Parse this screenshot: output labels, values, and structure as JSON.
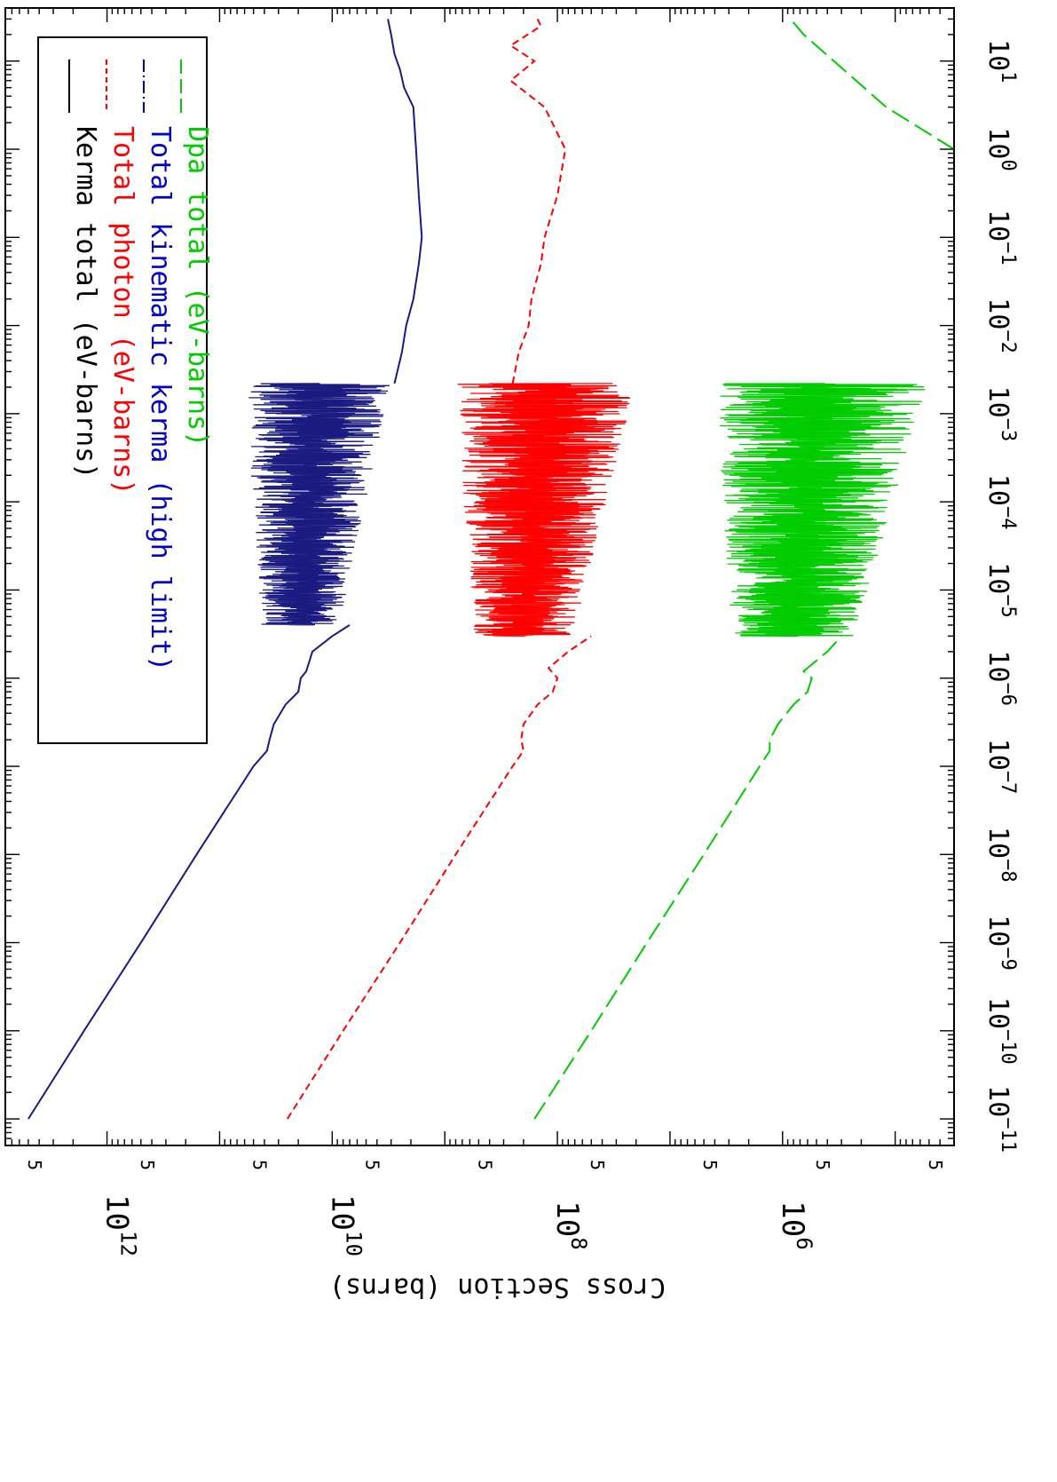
{
  "chart_data": {
    "type": "line",
    "rotation": "rotated 90 degrees clockwise (energy axis runs top-to-bottom along the right edge)",
    "ylabel": "Cross Section (barns)",
    "xlabel": "",
    "x_scale": "log",
    "y_scale": "log",
    "xlim": [
      5e-12,
      40
    ],
    "ylim": [
      30000.0,
      8000000000000.0
    ],
    "x_ticks": [
      {
        "exp": "-11",
        "value": 1e-11
      },
      {
        "exp": "-10",
        "value": 1e-10
      },
      {
        "exp": "-9",
        "value": 1e-09
      },
      {
        "exp": "-8",
        "value": 1e-08
      },
      {
        "exp": "-7",
        "value": 1e-07
      },
      {
        "exp": "-6",
        "value": 1e-06
      },
      {
        "exp": "-5",
        "value": 1e-05
      },
      {
        "exp": "-4",
        "value": 0.0001
      },
      {
        "exp": "-3",
        "value": 0.001
      },
      {
        "exp": "-2",
        "value": 0.01
      },
      {
        "exp": "-1",
        "value": 0.1
      },
      {
        "exp": "0",
        "value": 1
      },
      {
        "exp": "1",
        "value": 10
      }
    ],
    "x_tick_base": "10",
    "y_major_ticks": [
      {
        "exp": "12",
        "value": 1000000000000.0
      },
      {
        "exp": "10",
        "value": 10000000000.0
      },
      {
        "exp": "8",
        "value": 100000000.0
      },
      {
        "exp": "6",
        "value": 1000000.0
      }
    ],
    "y_tick_base": "10",
    "y_minor_five_labels": [
      5000000000000.0,
      500000000000.0,
      50000000000.0,
      5000000000.0,
      500000000.0,
      50000000.0,
      5000000.0,
      500000.0,
      50000.0
    ],
    "y_minor_five_text": "5",
    "legend": {
      "placement": "top-left (rotated frame)",
      "entries": [
        {
          "label": "Kerma total  (eV-barns)",
          "color": "#000000",
          "dash": "solid"
        },
        {
          "label": "Total photon (eV-barns)",
          "color": "#ff0000",
          "dash": "short-dash"
        },
        {
          "label": "Total kinematic kerma (high limit)",
          "color": "#0000cc",
          "dash": "dash-dot"
        },
        {
          "label": "Dpa total (eV-barns)",
          "color": "#00cc00",
          "dash": "long-dash"
        }
      ]
    },
    "series": [
      {
        "name": "Kerma total  (eV-barns)",
        "color": "#1a1a80",
        "smooth": [
          [
            1e-11,
            5000000000000.0
          ],
          [
            1e-10,
            1600000000000.0
          ],
          [
            1e-09,
            500000000000.0
          ],
          [
            1e-08,
            160000000000.0
          ],
          [
            1e-07,
            50000000000.0
          ],
          [
            1.5e-07,
            38000000000.0
          ],
          [
            2e-07,
            36000000000.0
          ],
          [
            3e-07,
            33000000000.0
          ],
          [
            5e-07,
            26000000000.0
          ],
          [
            7e-07,
            20000000000.0
          ],
          [
            1e-06,
            19000000000.0
          ],
          [
            1.2e-06,
            17000000000.0
          ],
          [
            2e-06,
            15000000000.0
          ],
          [
            3e-06,
            10000000000.0
          ],
          [
            4e-06,
            7000000000.0
          ]
        ],
        "resonance_band": {
          "x_range": [
            4e-06,
            0.0022
          ],
          "low": 3000000000.0,
          "high": 60000000000.0
        },
        "tail": [
          [
            0.0022,
            2800000000.0
          ],
          [
            0.005,
            2400000000.0
          ],
          [
            0.01,
            2200000000.0
          ],
          [
            0.02,
            1900000000.0
          ],
          [
            0.05,
            1700000000.0
          ],
          [
            0.1,
            1600000000.0
          ],
          [
            0.3,
            1700000000.0
          ],
          [
            1,
            1800000000.0
          ],
          [
            3,
            1900000000.0
          ],
          [
            5,
            2300000000.0
          ],
          [
            8,
            2500000000.0
          ],
          [
            12,
            2800000000.0
          ],
          [
            20,
            3000000000.0
          ],
          [
            30,
            3200000000.0
          ]
        ]
      },
      {
        "name": "Total photon (eV-barns)",
        "color": "#ff0000",
        "smooth": [
          [
            1e-11,
            25000000000.0
          ],
          [
            1e-10,
            8000000000.0
          ],
          [
            1e-09,
            2500000000.0
          ],
          [
            1e-08,
            800000000.0
          ],
          [
            1e-07,
            250000000.0
          ],
          [
            1.5e-07,
            200000000.0
          ],
          [
            2e-07,
            210000000.0
          ],
          [
            3e-07,
            200000000.0
          ],
          [
            5e-07,
            150000000.0
          ],
          [
            7e-07,
            110000000.0
          ],
          [
            1e-06,
            100000000.0
          ],
          [
            1.3e-06,
            120000000.0
          ],
          [
            2e-06,
            80000000.0
          ],
          [
            3e-06,
            50000000.0
          ]
        ],
        "resonance_band": {
          "x_range": [
            3e-06,
            0.0022
          ],
          "low": 20000000.0,
          "high": 800000000.0
        },
        "tail": [
          [
            0.0022,
            250000000.0
          ],
          [
            0.005,
            220000000.0
          ],
          [
            0.01,
            180000000.0
          ],
          [
            0.02,
            170000000.0
          ],
          [
            0.05,
            140000000.0
          ],
          [
            0.1,
            130000000.0
          ],
          [
            0.3,
            100000000.0
          ],
          [
            1,
            85000000.0
          ],
          [
            3,
            130000000.0
          ],
          [
            6,
            260000000.0
          ],
          [
            10,
            160000000.0
          ],
          [
            15,
            260000000.0
          ],
          [
            25,
            140000000.0
          ],
          [
            30,
            150000000.0
          ]
        ]
      },
      {
        "name": "Dpa total (eV-barns)",
        "color": "#00cc00",
        "smooth": [
          [
            1e-11,
            160000000.0
          ],
          [
            1e-10,
            50000000.0
          ],
          [
            1e-09,
            16000000.0
          ],
          [
            1e-08,
            5000000.0
          ],
          [
            1e-07,
            1600000.0
          ],
          [
            1.5e-07,
            1300000.0
          ],
          [
            2e-07,
            1300000.0
          ],
          [
            3e-07,
            1100000.0
          ],
          [
            5e-07,
            800000.0
          ],
          [
            7e-07,
            600000.0
          ],
          [
            1e-06,
            550000.0
          ],
          [
            1.2e-06,
            650000.0
          ],
          [
            2e-06,
            400000.0
          ],
          [
            3e-06,
            300000.0
          ]
        ],
        "resonance_band": {
          "x_range": [
            3e-06,
            0.0022
          ],
          "low": 50000.0,
          "high": 4000000.0
        },
        "tail": [
          [
            1,
            30000.0
          ],
          [
            3,
            120000.0
          ],
          [
            10,
            350000.0
          ],
          [
            20,
            650000.0
          ],
          [
            30,
            850000.0
          ]
        ]
      }
    ]
  }
}
